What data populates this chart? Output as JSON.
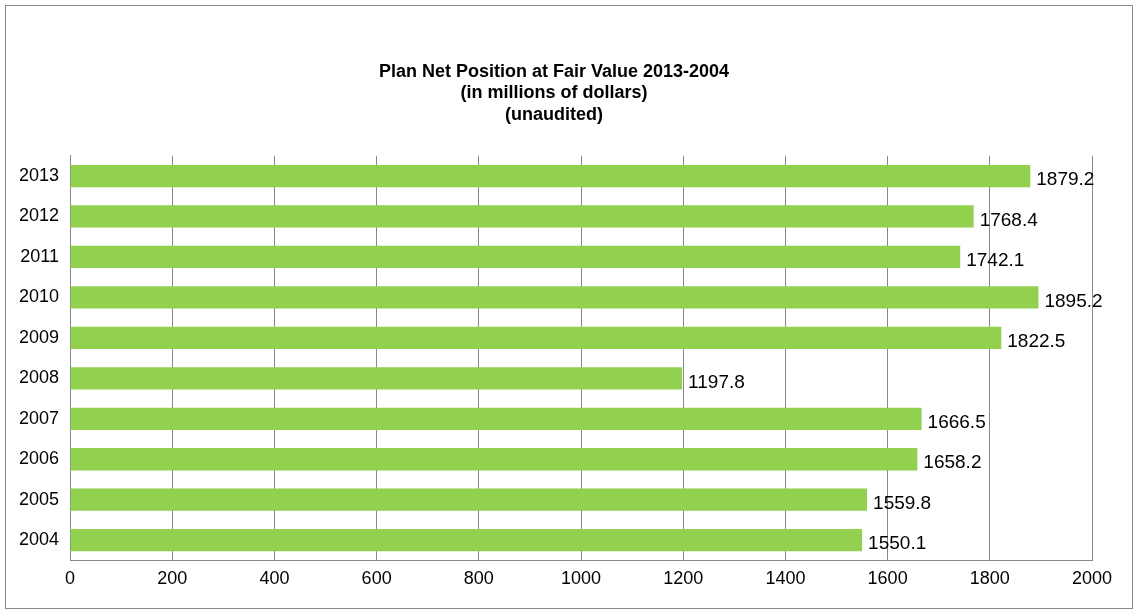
{
  "chart_data": {
    "type": "bar",
    "orientation": "horizontal",
    "title": "Plan Net Position at Fair Value 2013-2004\n(in millions of dollars)\n(unaudited)",
    "categories": [
      "2013",
      "2012",
      "2011",
      "2010",
      "2009",
      "2008",
      "2007",
      "2006",
      "2005",
      "2004"
    ],
    "values": [
      1879.2,
      1768.4,
      1742.1,
      1895.2,
      1822.5,
      1197.8,
      1666.5,
      1658.2,
      1559.8,
      1550.1
    ],
    "color": "#92d050",
    "xlim": [
      0,
      2000
    ],
    "xticks": [
      0,
      200,
      400,
      600,
      800,
      1000,
      1200,
      1400,
      1600,
      1800,
      2000
    ],
    "grid": "x",
    "data_labels": true,
    "legend": false
  }
}
